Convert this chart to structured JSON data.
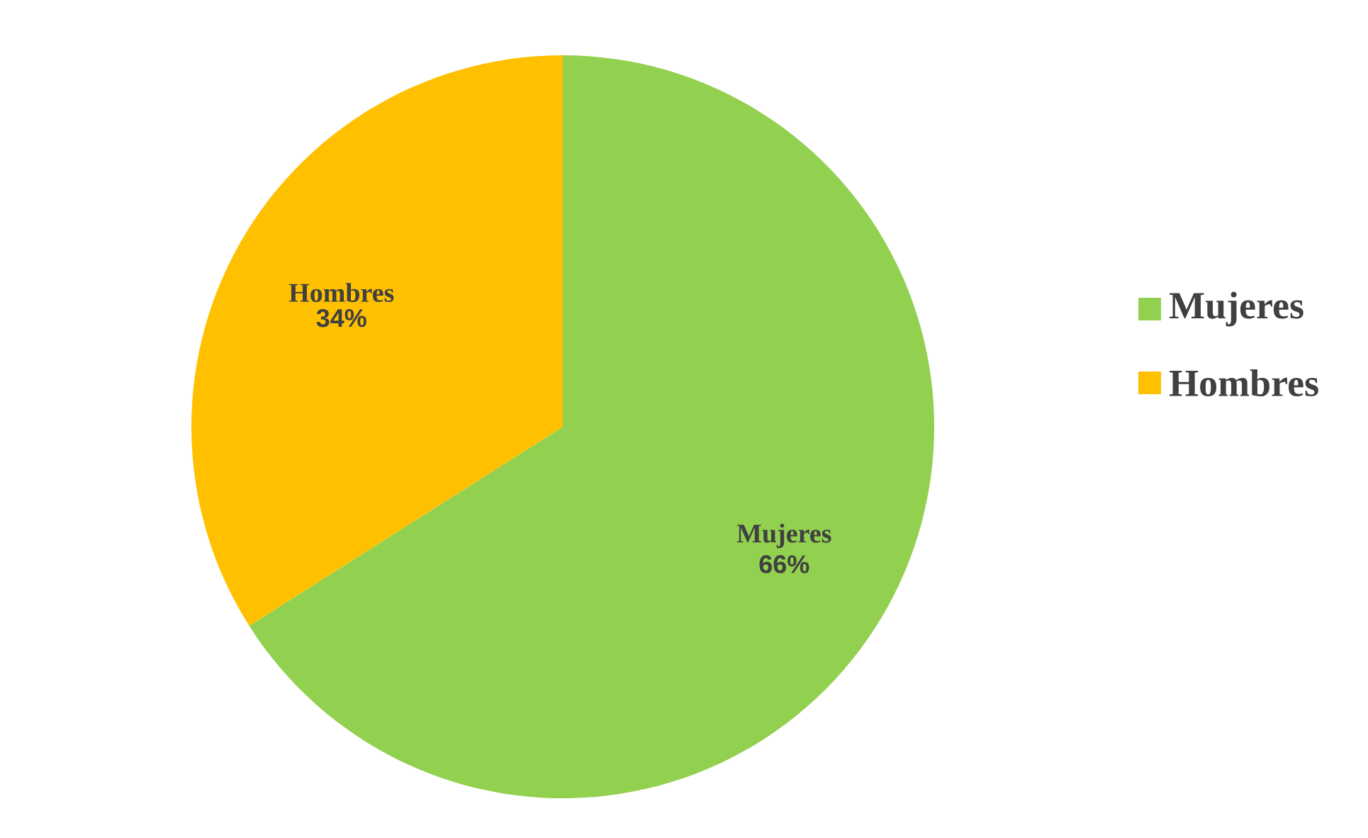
{
  "chart_data": {
    "type": "pie",
    "categories": [
      "Mujeres",
      "Hombres"
    ],
    "values": [
      66,
      34
    ],
    "colors": [
      "#92d050",
      "#ffc000"
    ],
    "value_labels": [
      "66%",
      "34%"
    ],
    "legend": "right"
  }
}
